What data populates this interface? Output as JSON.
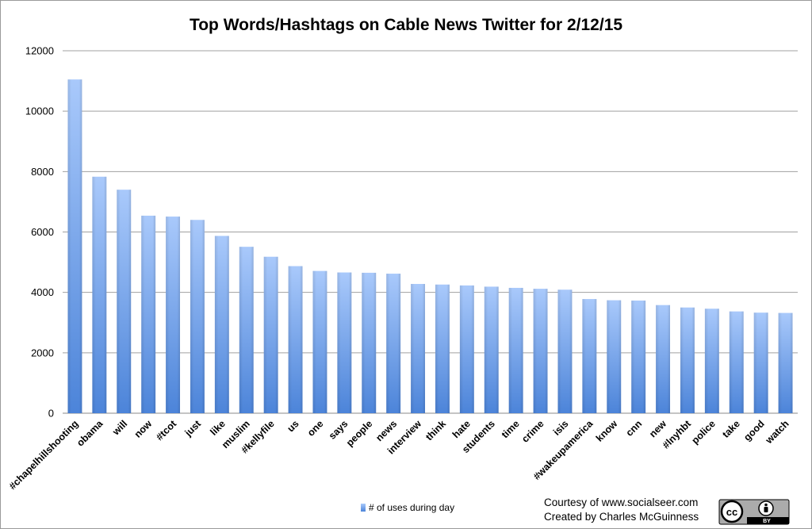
{
  "chart_data": {
    "type": "bar",
    "title": "Top Words/Hashtags on Cable News Twitter for 2/12/15",
    "xlabel": "",
    "ylabel": "",
    "ylim": [
      0,
      12000
    ],
    "yticks": [
      0,
      2000,
      4000,
      6000,
      8000,
      10000,
      12000
    ],
    "grid": true,
    "legend_position": "bottom",
    "categories": [
      "#chapelhillshooting",
      "obama",
      "will",
      "now",
      "#tcot",
      "just",
      "like",
      "muslim",
      "#kellyfile",
      "us",
      "one",
      "says",
      "people",
      "news",
      "interview",
      "think",
      "hate",
      "students",
      "time",
      "crime",
      "isis",
      "#wakeupamerica",
      "know",
      "cnn",
      "new",
      "#lnyhbt",
      "police",
      "take",
      "good",
      "watch"
    ],
    "series": [
      {
        "name": "# of uses during day",
        "color": "#7fa8e8",
        "values": [
          11050,
          7830,
          7400,
          6540,
          6510,
          6400,
          5870,
          5510,
          5180,
          4870,
          4710,
          4660,
          4650,
          4620,
          4280,
          4260,
          4230,
          4190,
          4150,
          4120,
          4090,
          3780,
          3740,
          3730,
          3580,
          3500,
          3460,
          3370,
          3330,
          3320
        ]
      }
    ]
  },
  "credits": {
    "line1": "Courtesy of www.socialseer.com",
    "line2": "Created by Charles McGuinness"
  },
  "license_badge": {
    "text": "BY",
    "icon": "cc-by-icon"
  }
}
